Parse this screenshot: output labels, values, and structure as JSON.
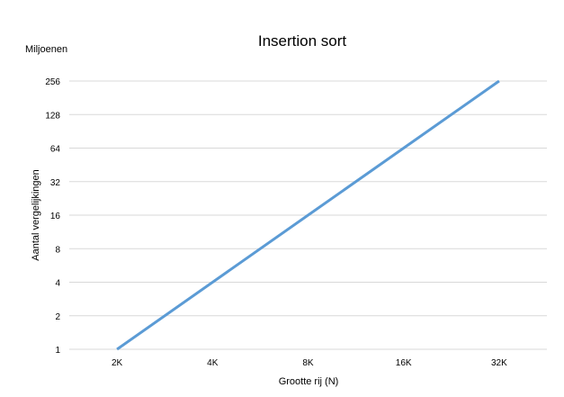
{
  "chart_data": {
    "type": "line",
    "title": "Insertion sort",
    "y_unit_label": "Miljoenen",
    "xlabel": "Grootte  rij (N)",
    "ylabel": "Aantal vergelijkingen",
    "y_scale": "log2",
    "grid": true,
    "legend": "none",
    "categories": [
      "2K",
      "4K",
      "8K",
      "16K",
      "32K"
    ],
    "y_ticks": [
      1,
      2,
      4,
      8,
      16,
      32,
      64,
      128,
      256
    ],
    "ylim": [
      1,
      256
    ],
    "series": [
      {
        "color": "#5b9bd5",
        "values": [
          1,
          4,
          16,
          64,
          256
        ]
      }
    ]
  }
}
